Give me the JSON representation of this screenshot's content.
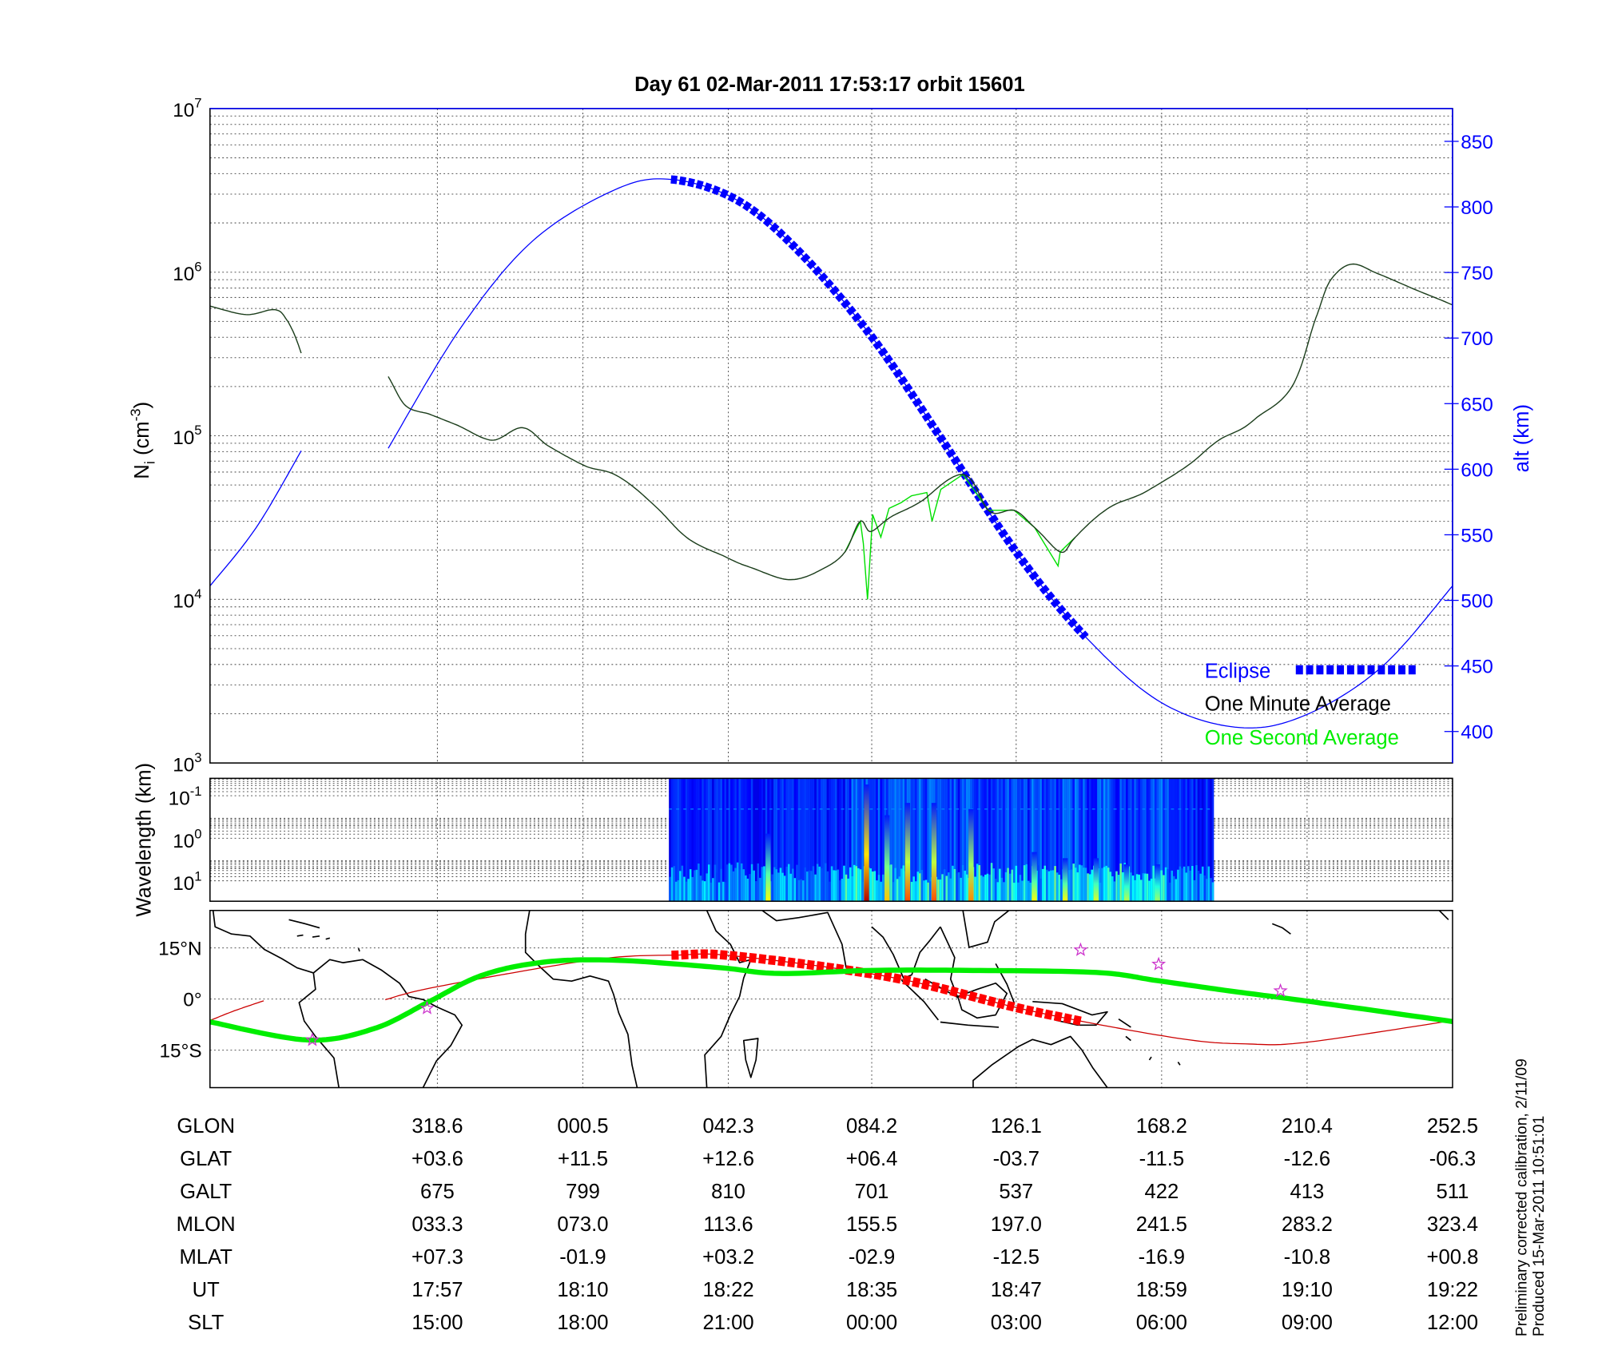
{
  "title": "Day 61  02-Mar-2011 17:53:17   orbit 15601",
  "chart_data": [
    {
      "type": "line",
      "panel": "ion-density",
      "x_range": [
        "17:38:00",
        "19:22:00"
      ],
      "x_unit": "UT",
      "y_scale": "log",
      "ylim": [
        1000,
        10000000
      ],
      "y_ticks": [
        {
          "base": "10",
          "exp": "3",
          "value": 1000
        },
        {
          "base": "10",
          "exp": "4",
          "value": 10000
        },
        {
          "base": "10",
          "exp": "5",
          "value": 100000
        },
        {
          "base": "10",
          "exp": "6",
          "value": 1000000
        },
        {
          "base": "10",
          "exp": "7",
          "value": 10000000
        }
      ],
      "ylabel": {
        "base": "N",
        "sub": "i",
        "pre": " (cm",
        "sup": "-3",
        "post": ")"
      },
      "y2": {
        "label": "alt (km)",
        "lim": [
          376,
          875
        ],
        "ticks": [
          400,
          450,
          500,
          550,
          600,
          650,
          700,
          750,
          800,
          850
        ]
      },
      "grid": true,
      "legend_position": "bottom-right",
      "legend": {
        "eclipse": "Eclipse",
        "minute": "One Minute Average",
        "second": "One Second Average"
      },
      "colors": {
        "altitude": "#0000ff",
        "eclipse": "#0000ff",
        "minute": "#1b3d1b",
        "second": "#00e000"
      },
      "eclipse": {
        "start": "18:16:35",
        "end": "18:51:18"
      },
      "series": {
        "one_minute_average": [
          [
            [
              "17:38:00",
              620000
            ],
            [
              "17:41:00",
              550000
            ],
            [
              "17:43:24",
              590000
            ],
            [
              "17:44:26",
              510000
            ],
            [
              "17:45:38",
              320000
            ]
          ],
          [
            [
              "17:52:55",
              230000
            ],
            [
              "17:54:17",
              155000
            ],
            [
              "17:56:26",
              135000
            ],
            [
              "17:58:35",
              117000
            ],
            [
              "18:01:35",
              94000
            ],
            [
              "18:04:09",
              112000
            ],
            [
              "18:06:17",
              87000
            ],
            [
              "18:09:17",
              66000
            ],
            [
              "18:11:52",
              58000
            ],
            [
              "18:15:17",
              37000
            ],
            [
              "18:17:52",
              24000
            ],
            [
              "18:21:17",
              18000
            ],
            [
              "18:23:26",
              15500
            ],
            [
              "18:26:26",
              13200
            ],
            [
              "18:29:01",
              15000
            ],
            [
              "18:31:09",
              19500
            ],
            [
              "18:32:26",
              30000
            ],
            [
              "18:33:18",
              26000
            ],
            [
              "18:35:01",
              32000
            ],
            [
              "18:37:35",
              40000
            ],
            [
              "18:41:01",
              58000
            ],
            [
              "18:43:09",
              35000
            ],
            [
              "18:45:18",
              35000
            ],
            [
              "18:47:01",
              27500
            ],
            [
              "18:49:10",
              19500
            ],
            [
              "18:50:26",
              24000
            ],
            [
              "18:53:26",
              37000
            ],
            [
              "18:56:26",
              46000
            ],
            [
              "18:59:52",
              66000
            ],
            [
              "19:02:26",
              94000
            ],
            [
              "19:05:26",
              126000
            ],
            [
              "19:08:52",
              220000
            ],
            [
              "19:10:35",
              530000
            ],
            [
              "19:11:52",
              910000
            ],
            [
              "19:13:35",
              1120000
            ],
            [
              "19:15:44",
              980000
            ],
            [
              "19:18:44",
              790000
            ],
            [
              "19:22:00",
              630000
            ]
          ]
        ],
        "one_second_average": [
          [
            [
              "18:31:09",
              19500
            ],
            [
              "18:32:26",
              30000
            ],
            [
              "18:32:41",
              22000
            ],
            [
              "18:33:02",
              10000
            ],
            [
              "18:33:28",
              33000
            ],
            [
              "18:34:09",
              24000
            ],
            [
              "18:34:50",
              36000
            ],
            [
              "18:35:51",
              39000
            ],
            [
              "18:36:43",
              43000
            ],
            [
              "18:38:00",
              45000
            ],
            [
              "18:38:26",
              30000
            ],
            [
              "18:39:10",
              47000
            ],
            [
              "18:41:01",
              58000
            ],
            [
              "18:43:09",
              35000
            ],
            [
              "18:45:18",
              35000
            ],
            [
              "18:47:01",
              27500
            ],
            [
              "18:48:59",
              16000
            ],
            [
              "18:49:10",
              19500
            ],
            [
              "18:50:26",
              24000
            ]
          ]
        ],
        "altitude_km": [
          [
            [
              "17:38:00",
              511
            ],
            [
              "17:41:50",
              555
            ],
            [
              "17:45:38",
              614
            ]
          ],
          [
            [
              "17:52:55",
              616
            ],
            [
              "17:59:00",
              708
            ],
            [
              "18:05:00",
              774
            ],
            [
              "18:11:52",
              813
            ],
            [
              "18:16:35",
              821
            ],
            [
              "18:22:09",
              805
            ],
            [
              "18:27:18",
              766
            ],
            [
              "18:33:23",
              701
            ],
            [
              "18:39:18",
              622
            ],
            [
              "18:45:28",
              537
            ],
            [
              "18:51:18",
              472
            ],
            [
              "18:57:38",
              422
            ],
            [
              "19:04:10",
              403
            ],
            [
              "19:09:49",
              413
            ],
            [
              "19:16:10",
              450
            ],
            [
              "19:22:00",
              511
            ]
          ]
        ]
      }
    },
    {
      "type": "heatmap",
      "panel": "spectrogram",
      "ylabel": "Wavelength (km)",
      "y_ticks": [
        {
          "base": "10",
          "exp": "-1"
        },
        {
          "base": "10",
          "exp": "0"
        },
        {
          "base": "10",
          "exp": "1"
        }
      ],
      "colormap": "jet",
      "data_range": [
        "18:16:25",
        "19:02:00"
      ],
      "bursts": [
        {
          "time": "18:24:43",
          "intensity": 0.45,
          "extent": 0.55
        },
        {
          "time": "18:32:57",
          "intensity": 1.0,
          "extent": 0.95
        },
        {
          "time": "18:34:40",
          "intensity": 0.55,
          "extent": 0.7
        },
        {
          "time": "18:36:23",
          "intensity": 0.75,
          "extent": 0.8
        },
        {
          "time": "18:38:36",
          "intensity": 0.75,
          "extent": 0.8
        },
        {
          "time": "18:41:42",
          "intensity": 0.65,
          "extent": 0.75
        },
        {
          "time": "18:47:00",
          "intensity": 0.45,
          "extent": 0.4
        },
        {
          "time": "18:49:35",
          "intensity": 0.45,
          "extent": 0.35
        },
        {
          "time": "18:52:10",
          "intensity": 0.4,
          "extent": 0.35
        },
        {
          "time": "18:54:43",
          "intensity": 0.35,
          "extent": 0.3
        },
        {
          "time": "18:57:18",
          "intensity": 0.3,
          "extent": 0.3
        }
      ]
    },
    {
      "type": "line",
      "panel": "map",
      "ylim": [
        -26,
        26
      ],
      "y_ticks": [
        {
          "label": "15°N",
          "value": 15
        },
        {
          "label": "0°",
          "value": 0
        },
        {
          "label": "15°S",
          "value": -15
        }
      ],
      "colors": {
        "ground_track": "#cc0000",
        "eclipse_track": "#ff0000",
        "green_line": "#00ee00",
        "stars": "#cc33cc"
      },
      "series": {
        "ground_track_lat": [
          [
            [
              "17:38:00",
              -6.3
            ],
            [
              "17:40:00",
              -3.5
            ],
            [
              "17:42:30",
              -0.5
            ]
          ],
          [
            [
              "17:52:40",
              -0.2
            ],
            [
              "17:57:00",
              3.6
            ],
            [
              "18:10:00",
              11.5
            ],
            [
              "18:17:00",
              12.9
            ],
            [
              "18:22:00",
              12.6
            ],
            [
              "18:35:00",
              6.4
            ],
            [
              "18:47:00",
              -3.7
            ],
            [
              "18:59:00",
              -11.5
            ],
            [
              "19:05:00",
              -13.2
            ],
            [
              "19:10:00",
              -12.6
            ],
            [
              "19:22:00",
              -6.3
            ]
          ]
        ],
        "green_line_lat": [
          [
            [
              "17:38:00",
              -6.7
            ],
            [
              "17:46:08",
              -12.0
            ],
            [
              "17:51:43",
              -8.7
            ],
            [
              "17:56:26",
              -0.6
            ],
            [
              "18:00:43",
              6.9
            ],
            [
              "18:05:52",
              10.8
            ],
            [
              "18:11:52",
              11.4
            ],
            [
              "18:20:26",
              9.3
            ],
            [
              "18:25:35",
              7.5
            ],
            [
              "18:33:18",
              8.4
            ],
            [
              "18:41:52",
              8.4
            ],
            [
              "18:52:10",
              7.8
            ],
            [
              "18:57:18",
              5.4
            ],
            [
              "19:03:18",
              2.4
            ],
            [
              "19:09:49",
              -0.6
            ],
            [
              "19:22:00",
              -6.6
            ]
          ]
        ]
      },
      "stars": [
        [
          "17:46:34",
          -12.0
        ],
        [
          "17:56:10",
          -2.7
        ],
        [
          "18:50:52",
          14.4
        ],
        [
          "18:57:24",
          10.2
        ],
        [
          "19:07:36",
          2.4
        ]
      ]
    }
  ],
  "table": {
    "rows": [
      {
        "label": "GLON",
        "values": [
          "318.6",
          "000.5",
          "042.3",
          "084.2",
          "126.1",
          "168.2",
          "210.4",
          "252.5"
        ]
      },
      {
        "label": "GLAT",
        "values": [
          "+03.6",
          "+11.5",
          "+12.6",
          "+06.4",
          "-03.7",
          "-11.5",
          "-12.6",
          "-06.3"
        ]
      },
      {
        "label": "GALT",
        "values": [
          "675",
          "799",
          "810",
          "701",
          "537",
          "422",
          "413",
          "511"
        ]
      },
      {
        "label": "MLON",
        "values": [
          "033.3",
          "073.0",
          "113.6",
          "155.5",
          "197.0",
          "241.5",
          "283.2",
          "323.4"
        ]
      },
      {
        "label": "MLAT",
        "values": [
          "+07.3",
          "-01.9",
          "+03.2",
          "-02.9",
          "-12.5",
          "-16.9",
          "-10.8",
          "+00.8"
        ]
      },
      {
        "label": "UT",
        "values": [
          "17:57",
          "18:10",
          "18:22",
          "18:35",
          "18:47",
          "18:59",
          "19:10",
          "19:22"
        ]
      },
      {
        "label": "SLT",
        "values": [
          "15:00",
          "18:00",
          "21:00",
          "00:00",
          "03:00",
          "06:00",
          "09:00",
          "12:00"
        ]
      }
    ]
  },
  "footer": {
    "line1": "Preliminary corrected calibration, 2/11/09",
    "line2": "Produced 15-Mar-2011 10:51:01"
  }
}
